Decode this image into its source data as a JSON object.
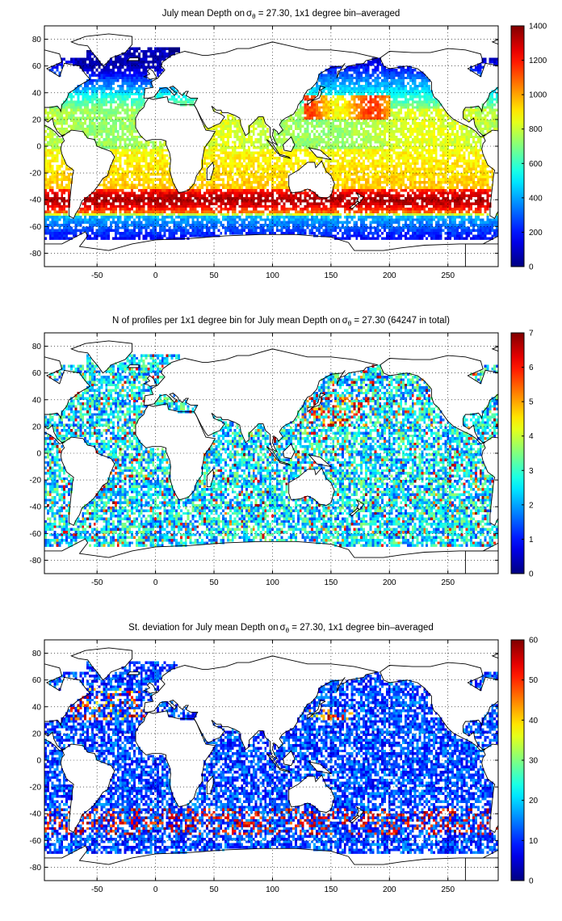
{
  "chart_data": [
    {
      "type": "heatmap",
      "title": "July mean Depth on σθ = 27.30, 1x1 degree bin–averaged",
      "title_parts": {
        "pre": "July mean Depth on",
        "sigma": "σ",
        "sub": "θ",
        "post": " = 27.30, 1x1 degree bin–averaged"
      },
      "xlim": [
        -95,
        293
      ],
      "ylim": [
        -90,
        90
      ],
      "xticks": [
        -50,
        0,
        50,
        100,
        150,
        200,
        250
      ],
      "yticks": [
        -80,
        -60,
        -40,
        -20,
        0,
        20,
        40,
        60,
        80
      ],
      "grid": true,
      "colormap": "jet",
      "colorbar": {
        "min": 0,
        "max": 1400,
        "ticks": [
          0,
          200,
          400,
          600,
          800,
          1000,
          1200,
          1400
        ]
      }
    },
    {
      "type": "heatmap",
      "title": "N of profiles per 1x1 degree bin for July mean Depth on σθ = 27.30 (64247 in total)",
      "title_parts": {
        "pre": "N of profiles per 1x1 degree bin for July mean Depth on",
        "sigma": "σ",
        "sub": "θ",
        "post": " = 27.30 (64247 in total)"
      },
      "xlim": [
        -95,
        293
      ],
      "ylim": [
        -90,
        90
      ],
      "xticks": [
        -50,
        0,
        50,
        100,
        150,
        200,
        250
      ],
      "yticks": [
        -80,
        -60,
        -40,
        -20,
        0,
        20,
        40,
        60,
        80
      ],
      "grid": true,
      "colormap": "jet",
      "colorbar": {
        "min": 0,
        "max": 7,
        "ticks": [
          0,
          1,
          2,
          3,
          4,
          5,
          6,
          7
        ]
      }
    },
    {
      "type": "heatmap",
      "title": "St. deviation for July mean Depth on σθ = 27.30, 1x1 degree bin–averaged",
      "title_parts": {
        "pre": "St. deviation for July mean Depth on",
        "sigma": "σ",
        "sub": "θ",
        "post": " = 27.30, 1x1 degree bin–averaged"
      },
      "xlim": [
        -95,
        293
      ],
      "ylim": [
        -90,
        90
      ],
      "xticks": [
        -50,
        0,
        50,
        100,
        150,
        200,
        250
      ],
      "yticks": [
        -80,
        -60,
        -40,
        -20,
        0,
        20,
        40,
        60,
        80
      ],
      "grid": true,
      "colormap": "jet",
      "colorbar": {
        "min": 0,
        "max": 60,
        "ticks": [
          0,
          10,
          20,
          30,
          40,
          50,
          60
        ]
      }
    }
  ]
}
